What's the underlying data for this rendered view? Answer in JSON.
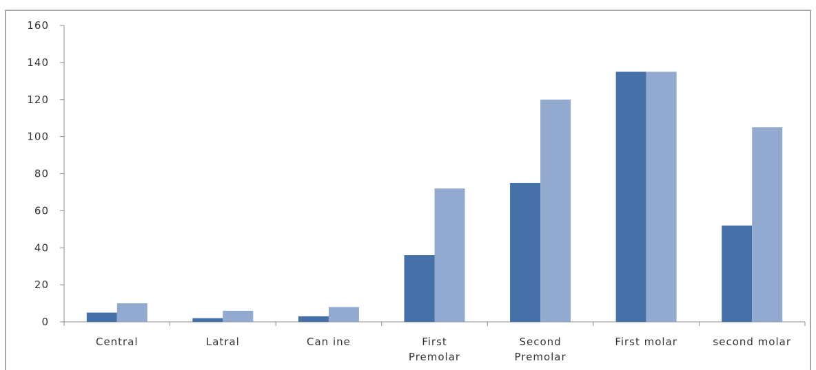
{
  "chart_data": {
    "type": "bar",
    "title": "",
    "xlabel": "",
    "ylabel": "",
    "categories": [
      "Central",
      "Latral",
      "Can ine",
      "First Premolar",
      "Second Premolar",
      "First molar",
      "second molar"
    ],
    "category_lines": [
      [
        "Central"
      ],
      [
        "Latral"
      ],
      [
        "Can ine"
      ],
      [
        "First",
        "Premolar"
      ],
      [
        "Second",
        "Premolar"
      ],
      [
        "First molar"
      ],
      [
        "second molar"
      ]
    ],
    "series": [
      {
        "values": [
          5,
          2,
          3,
          36,
          75,
          135,
          52
        ],
        "color": "#4570a8"
      },
      {
        "values": [
          10,
          6,
          8,
          72,
          120,
          135,
          105
        ],
        "color": "#92a9d0"
      }
    ],
    "ylim": [
      0,
      160
    ],
    "yticks": [
      "0",
      "20",
      "40",
      "60",
      "80",
      "100",
      "120",
      "140",
      "160"
    ],
    "ytick_values": [
      0,
      20,
      40,
      60,
      80,
      100,
      120,
      140,
      160
    ],
    "grid": false,
    "legend": "none"
  }
}
